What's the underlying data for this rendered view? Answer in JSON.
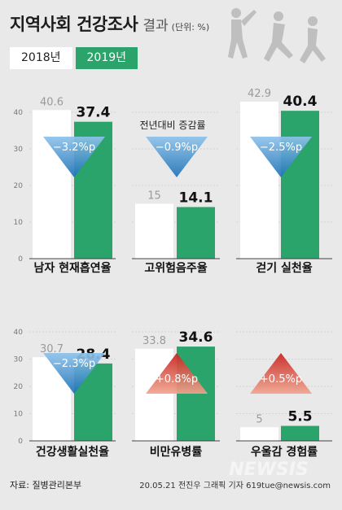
{
  "title": "지역사회 건강조사",
  "subtitle": "결과",
  "unit": "(단위: %)",
  "legend": [
    {
      "label": "2018년",
      "color": "#ffffff"
    },
    {
      "label": "2019년",
      "color": "#2aa46a"
    }
  ],
  "center_note": "전년대비 증감률",
  "source": "자료: 질병관리본부",
  "credit": "20.05.21 전진우 그래픽 기자  619tue@newsis.com",
  "watermark": "NEWSIS",
  "chart_data": {
    "type": "bar",
    "ylim": [
      0,
      40
    ],
    "yticks": [
      0,
      10,
      20,
      30,
      40
    ],
    "series": [
      {
        "name": "2018년",
        "color": "#ffffff"
      },
      {
        "name": "2019년",
        "color": "#2aa46a"
      }
    ],
    "panels": [
      {
        "category": "남자 현재흡연율",
        "v2018": 40.6,
        "v2019": 37.4,
        "change": "−3.2%p",
        "direction": "down"
      },
      {
        "category": "고위험음주율",
        "v2018": 15,
        "v2019": 14.1,
        "change": "−0.9%p",
        "direction": "down"
      },
      {
        "category": "걷기 실천율",
        "v2018": 42.9,
        "v2019": 40.4,
        "change": "−2.5%p",
        "direction": "down"
      },
      {
        "category": "건강생활실천율",
        "v2018": 30.7,
        "v2019": 28.4,
        "change": "−2.3%p",
        "direction": "down"
      },
      {
        "category": "비만유병률",
        "v2018": 33.8,
        "v2019": 34.6,
        "change": "+0.8%p",
        "direction": "up"
      },
      {
        "category": "우울감 경험률",
        "v2018": 5,
        "v2019": 5.5,
        "change": "+0.5%p",
        "direction": "up"
      }
    ]
  }
}
